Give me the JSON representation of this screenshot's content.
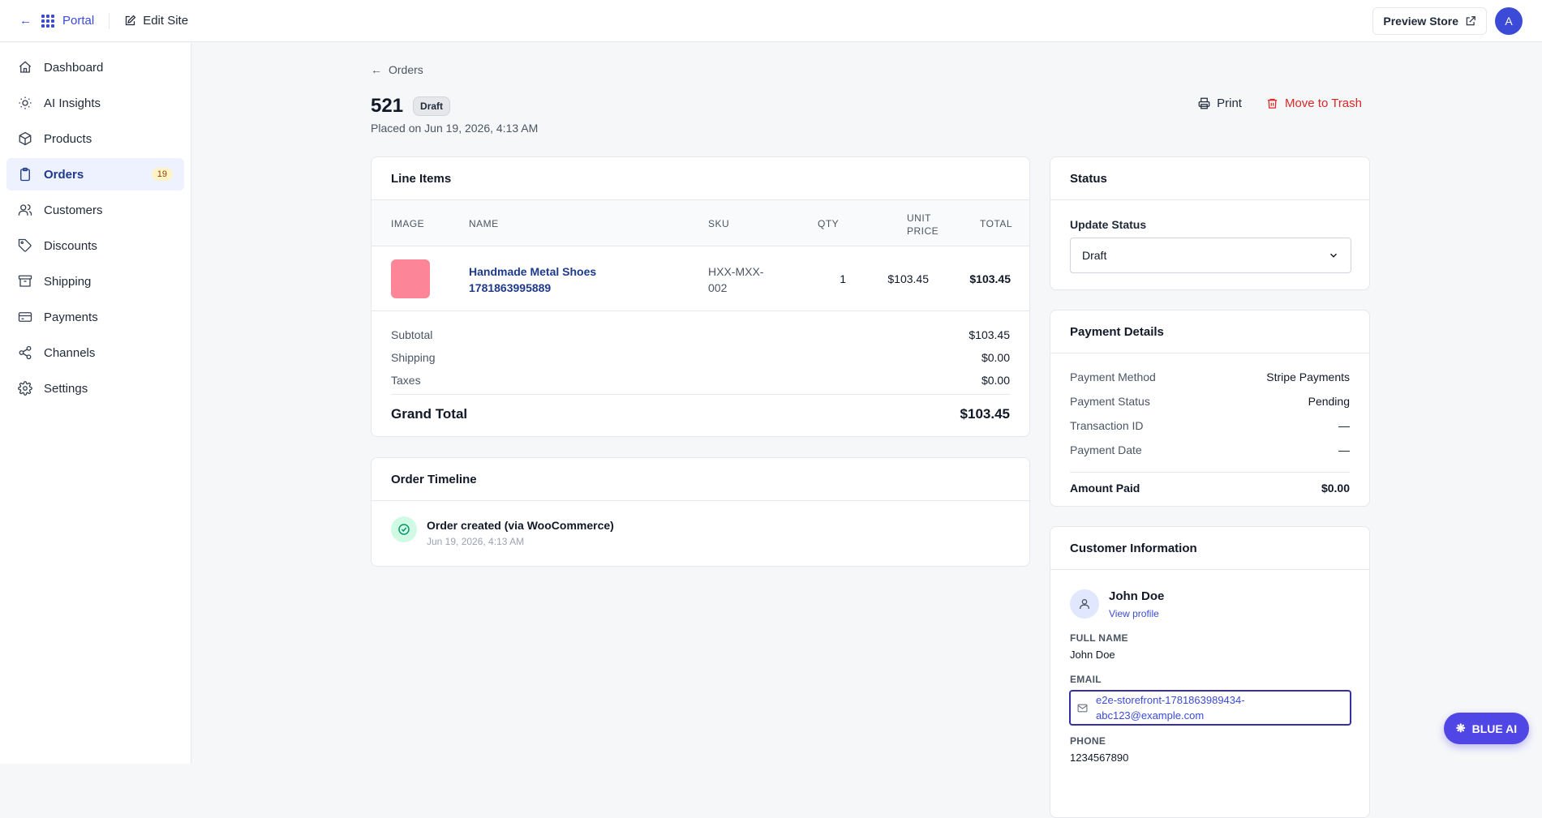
{
  "topbar": {
    "portal_label": "Portal",
    "edit_site_label": "Edit Site",
    "preview_store_label": "Preview Store",
    "avatar_initial": "A"
  },
  "sidebar": {
    "items": [
      {
        "label": "Dashboard",
        "icon": "home-icon"
      },
      {
        "label": "AI Insights",
        "icon": "lightbulb-icon"
      },
      {
        "label": "Products",
        "icon": "box-icon"
      },
      {
        "label": "Orders",
        "icon": "clipboard-icon",
        "badge": "19",
        "active": true
      },
      {
        "label": "Customers",
        "icon": "users-icon"
      },
      {
        "label": "Discounts",
        "icon": "tag-icon"
      },
      {
        "label": "Shipping",
        "icon": "archive-icon"
      },
      {
        "label": "Payments",
        "icon": "credit-card-icon"
      },
      {
        "label": "Channels",
        "icon": "share-icon"
      },
      {
        "label": "Settings",
        "icon": "gear-icon"
      }
    ]
  },
  "order": {
    "breadcrumb": "Orders",
    "number": "521",
    "status_badge": "Draft",
    "placed_on": "Placed on Jun 19, 2026, 4:13 AM",
    "print_label": "Print",
    "trash_label": "Move to Trash"
  },
  "line_items": {
    "title": "Line Items",
    "headers": {
      "image": "IMAGE",
      "name": "NAME",
      "sku": "SKU",
      "qty": "QTY",
      "unit_price_1": "UNIT",
      "unit_price_2": "PRICE",
      "total": "TOTAL"
    },
    "rows": [
      {
        "name_1": "Handmade Metal Shoes",
        "name_2": "1781863995889",
        "sku_1": "HXX-MXX-",
        "sku_2": "002",
        "qty": "1",
        "unit_price": "$103.45",
        "total": "$103.45",
        "thumb_color": "#fb7185"
      }
    ],
    "subtotal_label": "Subtotal",
    "subtotal": "$103.45",
    "shipping_label": "Shipping",
    "shipping": "$0.00",
    "taxes_label": "Taxes",
    "taxes": "$0.00",
    "grand_total_label": "Grand Total",
    "grand_total": "$103.45"
  },
  "timeline": {
    "title": "Order Timeline",
    "events": [
      {
        "text": "Order created (via WooCommerce)",
        "time": "Jun 19, 2026, 4:13 AM"
      }
    ]
  },
  "status_card": {
    "title": "Status",
    "update_label": "Update Status",
    "selected": "Draft"
  },
  "payment": {
    "title": "Payment Details",
    "method_label": "Payment Method",
    "method": "Stripe Payments",
    "status_label": "Payment Status",
    "status": "Pending",
    "txn_label": "Transaction ID",
    "txn": "—",
    "date_label": "Payment Date",
    "date": "—",
    "amount_label": "Amount Paid",
    "amount": "$0.00"
  },
  "customer": {
    "title": "Customer Information",
    "name": "John Doe",
    "view_profile": "View profile",
    "full_name_label": "FULL NAME",
    "full_name": "John Doe",
    "email_label": "EMAIL",
    "email_1": "e2e-storefront-1781863989434-",
    "email_2": "abc123@example.com",
    "phone_label": "PHONE",
    "phone": "1234567890"
  },
  "assistant": {
    "label": "BLUE AI"
  },
  "colors": {
    "accent": "#3b4bd8",
    "danger": "#dc2626",
    "success_bg": "#d1fae5"
  }
}
